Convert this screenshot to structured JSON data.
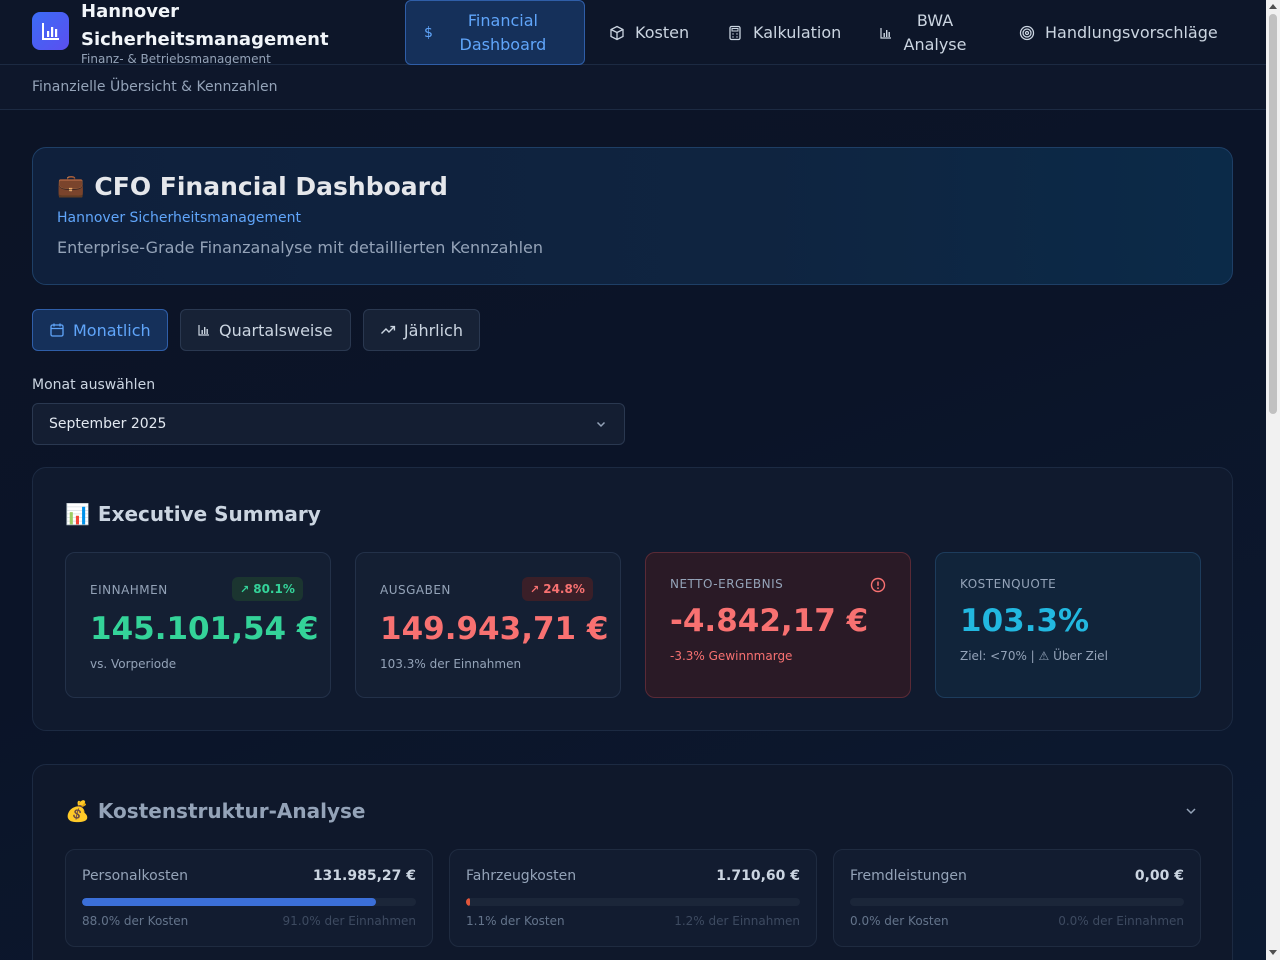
{
  "brand": {
    "title": "Hannover Sicherheitsmanagement",
    "subtitle": "Finanz- & Betriebsmanagement"
  },
  "nav": [
    {
      "label": "Financial Dashboard",
      "icon": "dollar-icon",
      "active": true
    },
    {
      "label": "Kosten",
      "icon": "box-icon"
    },
    {
      "label": "Kalkulation",
      "icon": "calculator-icon"
    },
    {
      "label": "BWA Analyse",
      "icon": "bar-chart-icon"
    },
    {
      "label": "Handlungsvorschläge",
      "icon": "target-icon"
    }
  ],
  "subbar": "Finanzielle Übersicht & Kennzahlen",
  "hero": {
    "emoji": "💼",
    "title": "CFO Financial Dashboard",
    "org": "Hannover Sicherheitsmanagement",
    "description": "Enterprise-Grade Finanzanalyse mit detaillierten Kennzahlen"
  },
  "periods": [
    {
      "label": "Monatlich",
      "icon": "calendar-icon",
      "active": true
    },
    {
      "label": "Quartalsweise",
      "icon": "bar-chart-icon"
    },
    {
      "label": "Jährlich",
      "icon": "trending-up-icon"
    }
  ],
  "month_select": {
    "label": "Monat auswählen",
    "value": "September 2025"
  },
  "summary": {
    "emoji": "📊",
    "title": "Executive Summary",
    "kpis": [
      {
        "label": "EINNAHMEN",
        "badge": "80.1%",
        "value": "145.101,54 €",
        "sub": "vs. Vorperiode",
        "color": "#34d399"
      },
      {
        "label": "AUSGABEN",
        "badge": "24.8%",
        "value": "149.943,71 €",
        "sub": "103.3% der Einnahmen",
        "color": "#f87171"
      },
      {
        "label": "NETTO-ERGEBNIS",
        "value": "-4.842,17 €",
        "sub": "-3.3% Gewinnmarge",
        "color": "#f87171"
      },
      {
        "label": "KOSTENQUOTE",
        "value": "103.3%",
        "sub": "Ziel: <70% | ⚠ Über Ziel",
        "color": "#22b8e0"
      }
    ]
  },
  "costs": {
    "emoji": "💰",
    "title": "Kostenstruktur-Analyse",
    "items": [
      {
        "name": "Personalkosten",
        "amount": "131.985,27 €",
        "share_costs": "88.0% der Kosten",
        "share_income": "91.0% der Einnahmen",
        "fill": 0.88,
        "color": "#3b6fd8"
      },
      {
        "name": "Fahrzeugkosten",
        "amount": "1.710,60 €",
        "share_costs": "1.1% der Kosten",
        "share_income": "1.2% der Einnahmen",
        "fill": 0.011,
        "color": "#e0563b"
      },
      {
        "name": "Fremdleistungen",
        "amount": "0,00 €",
        "share_costs": "0.0% der Kosten",
        "share_income": "0.0% der Einnahmen",
        "fill": 0.0,
        "color": "#64748b"
      }
    ]
  }
}
